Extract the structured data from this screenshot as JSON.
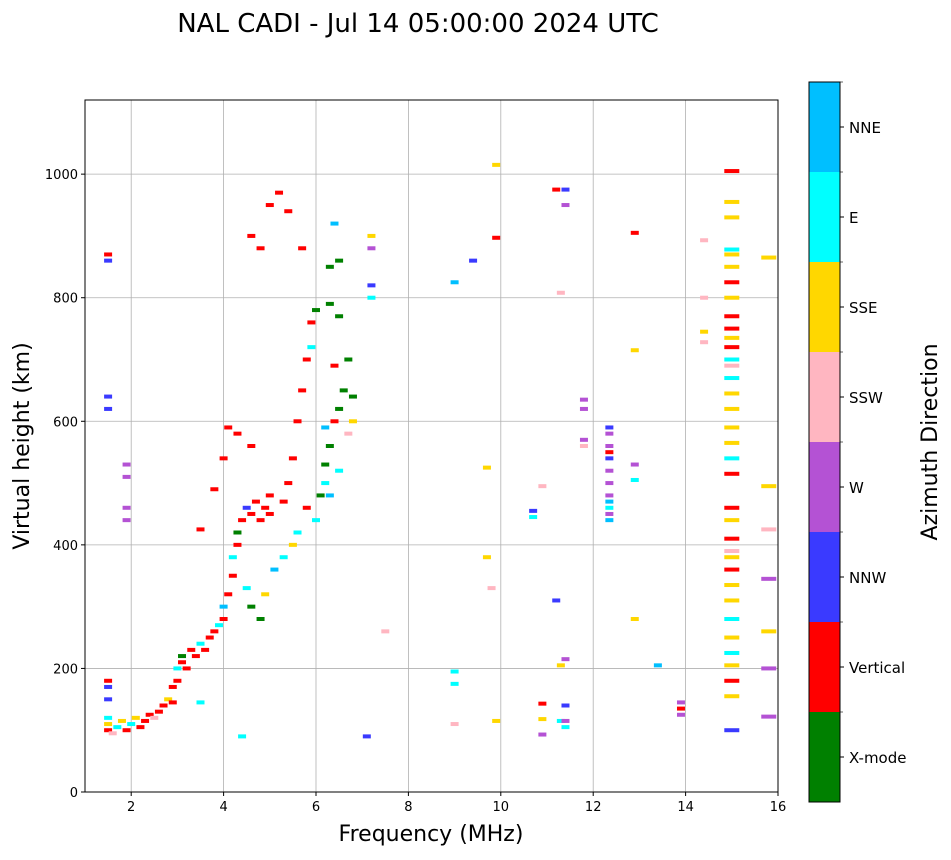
{
  "chart_data": {
    "type": "scatter",
    "title": "NAL CADI - Jul 14 05:00:00 2024 UTC",
    "xlabel": "Frequency (MHz)",
    "ylabel": "Virtual height (km)",
    "xlim": [
      1,
      16
    ],
    "ylim": [
      0,
      1120
    ],
    "xticks": [
      2,
      4,
      6,
      8,
      10,
      12,
      14,
      16
    ],
    "yticks": [
      0,
      200,
      400,
      600,
      800,
      1000
    ],
    "grid": true,
    "colorbar": {
      "label": "Azimuth Direction",
      "categories": [
        "X-mode",
        "Vertical",
        "NNW",
        "W",
        "SSW",
        "SSE",
        "E",
        "NNE"
      ],
      "colors": [
        "#008000",
        "#ff0000",
        "#3a3aff",
        "#b452d4",
        "#ffb6c1",
        "#ffd700",
        "#00ffff",
        "#00bfff"
      ]
    },
    "points_format": [
      "frequency_MHz",
      "virtual_height_km",
      "direction_index"
    ],
    "points": [
      [
        1.5,
        100,
        1
      ],
      [
        1.5,
        110,
        5
      ],
      [
        1.5,
        120,
        6
      ],
      [
        1.5,
        150,
        2
      ],
      [
        1.5,
        170,
        2
      ],
      [
        1.5,
        180,
        1
      ],
      [
        1.6,
        95,
        4
      ],
      [
        1.7,
        105,
        6
      ],
      [
        1.8,
        115,
        5
      ],
      [
        1.9,
        100,
        1
      ],
      [
        2.0,
        110,
        6
      ],
      [
        2.1,
        120,
        5
      ],
      [
        2.2,
        105,
        1
      ],
      [
        2.3,
        115,
        1
      ],
      [
        2.4,
        125,
        1
      ],
      [
        2.5,
        120,
        4
      ],
      [
        2.6,
        130,
        1
      ],
      [
        2.7,
        140,
        1
      ],
      [
        2.8,
        150,
        5
      ],
      [
        2.9,
        145,
        1
      ],
      [
        2.9,
        170,
        1
      ],
      [
        3.0,
        180,
        1
      ],
      [
        3.0,
        200,
        6
      ],
      [
        3.1,
        210,
        1
      ],
      [
        3.1,
        220,
        0
      ],
      [
        3.2,
        200,
        1
      ],
      [
        3.3,
        230,
        1
      ],
      [
        3.4,
        220,
        1
      ],
      [
        3.5,
        240,
        6
      ],
      [
        3.6,
        230,
        1
      ],
      [
        3.7,
        250,
        1
      ],
      [
        3.8,
        260,
        1
      ],
      [
        3.9,
        270,
        6
      ],
      [
        4.0,
        280,
        1
      ],
      [
        4.0,
        300,
        7
      ],
      [
        4.1,
        320,
        1
      ],
      [
        4.2,
        350,
        1
      ],
      [
        4.2,
        380,
        6
      ],
      [
        4.3,
        400,
        1
      ],
      [
        4.3,
        420,
        0
      ],
      [
        4.4,
        440,
        1
      ],
      [
        4.5,
        460,
        2
      ],
      [
        4.6,
        450,
        1
      ],
      [
        4.7,
        470,
        1
      ],
      [
        4.8,
        440,
        1
      ],
      [
        4.9,
        460,
        1
      ],
      [
        5.0,
        450,
        1
      ],
      [
        5.0,
        480,
        1
      ],
      [
        4.5,
        330,
        6
      ],
      [
        4.6,
        300,
        0
      ],
      [
        4.8,
        280,
        0
      ],
      [
        4.9,
        320,
        5
      ],
      [
        5.1,
        360,
        7
      ],
      [
        5.3,
        380,
        6
      ],
      [
        5.5,
        400,
        5
      ],
      [
        5.6,
        420,
        6
      ],
      [
        5.3,
        470,
        1
      ],
      [
        5.4,
        500,
        1
      ],
      [
        5.5,
        540,
        1
      ],
      [
        5.6,
        600,
        1
      ],
      [
        5.7,
        650,
        1
      ],
      [
        5.8,
        700,
        1
      ],
      [
        5.9,
        760,
        1
      ],
      [
        5.9,
        720,
        6
      ],
      [
        6.0,
        780,
        0
      ],
      [
        6.1,
        480,
        0
      ],
      [
        6.2,
        500,
        6
      ],
      [
        6.2,
        530,
        0
      ],
      [
        6.3,
        560,
        0
      ],
      [
        6.4,
        600,
        1
      ],
      [
        6.5,
        620,
        0
      ],
      [
        6.6,
        650,
        0
      ],
      [
        6.7,
        700,
        0
      ],
      [
        6.8,
        600,
        5
      ],
      [
        6.8,
        640,
        0
      ],
      [
        6.7,
        580,
        4
      ],
      [
        6.5,
        520,
        6
      ],
      [
        6.3,
        480,
        7
      ],
      [
        6.2,
        590,
        7
      ],
      [
        6.0,
        440,
        6
      ],
      [
        5.8,
        460,
        1
      ],
      [
        6.4,
        690,
        1
      ],
      [
        6.5,
        770,
        0
      ],
      [
        6.3,
        850,
        0
      ],
      [
        6.3,
        790,
        0
      ],
      [
        6.5,
        860,
        0
      ],
      [
        5.0,
        950,
        1
      ],
      [
        5.2,
        970,
        1
      ],
      [
        4.6,
        900,
        1
      ],
      [
        4.8,
        880,
        1
      ],
      [
        5.4,
        940,
        1
      ],
      [
        5.7,
        880,
        1
      ],
      [
        6.4,
        920,
        7
      ],
      [
        7.2,
        900,
        5
      ],
      [
        7.2,
        880,
        3
      ],
      [
        7.2,
        820,
        2
      ],
      [
        7.2,
        800,
        6
      ],
      [
        4.1,
        590,
        1
      ],
      [
        4.3,
        580,
        1
      ],
      [
        4.0,
        540,
        1
      ],
      [
        3.8,
        490,
        1
      ],
      [
        4.6,
        560,
        1
      ],
      [
        3.5,
        425,
        1
      ],
      [
        3.5,
        145,
        6
      ],
      [
        4.4,
        90,
        6
      ],
      [
        1.5,
        870,
        1
      ],
      [
        1.5,
        860,
        2
      ],
      [
        1.5,
        640,
        2
      ],
      [
        1.5,
        620,
        2
      ],
      [
        1.9,
        530,
        3
      ],
      [
        1.9,
        510,
        3
      ],
      [
        1.9,
        460,
        3
      ],
      [
        1.9,
        440,
        3
      ],
      [
        7.5,
        260,
        4
      ],
      [
        7.1,
        90,
        2
      ],
      [
        9.0,
        825,
        7
      ],
      [
        9.4,
        860,
        2
      ],
      [
        9.9,
        1015,
        5
      ],
      [
        9.9,
        897,
        1
      ],
      [
        9.7,
        525,
        5
      ],
      [
        9.7,
        380,
        5
      ],
      [
        9.8,
        330,
        4
      ],
      [
        9.9,
        115,
        5
      ],
      [
        9.0,
        110,
        4
      ],
      [
        9.0,
        195,
        6
      ],
      [
        9.0,
        175,
        6
      ],
      [
        10.7,
        455,
        2
      ],
      [
        10.7,
        445,
        6
      ],
      [
        10.9,
        495,
        4
      ],
      [
        10.9,
        143,
        1
      ],
      [
        10.9,
        118,
        5
      ],
      [
        10.9,
        93,
        3
      ],
      [
        11.2,
        310,
        2
      ],
      [
        11.3,
        205,
        5
      ],
      [
        11.3,
        115,
        6
      ],
      [
        11.4,
        975,
        2
      ],
      [
        11.4,
        950,
        3
      ],
      [
        11.2,
        975,
        1
      ],
      [
        11.3,
        808,
        4
      ],
      [
        11.4,
        215,
        3
      ],
      [
        11.4,
        140,
        2
      ],
      [
        11.4,
        115,
        3
      ],
      [
        11.4,
        105,
        6
      ],
      [
        11.8,
        635,
        3
      ],
      [
        11.8,
        620,
        3
      ],
      [
        11.8,
        570,
        3
      ],
      [
        11.8,
        560,
        4
      ],
      [
        12.35,
        590,
        2
      ],
      [
        12.35,
        580,
        3
      ],
      [
        12.35,
        560,
        3
      ],
      [
        12.35,
        550,
        1
      ],
      [
        12.35,
        540,
        2
      ],
      [
        12.35,
        520,
        3
      ],
      [
        12.35,
        500,
        3
      ],
      [
        12.35,
        480,
        3
      ],
      [
        12.35,
        470,
        7
      ],
      [
        12.35,
        460,
        6
      ],
      [
        12.35,
        450,
        3
      ],
      [
        12.35,
        440,
        7
      ],
      [
        12.9,
        905,
        1
      ],
      [
        12.9,
        715,
        5
      ],
      [
        12.9,
        530,
        3
      ],
      [
        12.9,
        505,
        6
      ],
      [
        12.9,
        280,
        5
      ],
      [
        13.4,
        205,
        7
      ],
      [
        13.9,
        145,
        3
      ],
      [
        13.9,
        135,
        1
      ],
      [
        13.9,
        125,
        3
      ],
      [
        14.4,
        893,
        4
      ],
      [
        14.4,
        800,
        4
      ],
      [
        14.4,
        745,
        5
      ],
      [
        14.4,
        728,
        4
      ],
      [
        15,
        1005,
        1
      ],
      [
        15,
        955,
        5
      ],
      [
        15,
        930,
        5
      ],
      [
        15,
        878,
        6
      ],
      [
        15,
        870,
        5
      ],
      [
        15,
        850,
        5
      ],
      [
        15,
        825,
        1
      ],
      [
        15,
        800,
        5
      ],
      [
        15,
        770,
        1
      ],
      [
        15,
        750,
        1
      ],
      [
        15,
        735,
        5
      ],
      [
        15,
        720,
        1
      ],
      [
        15,
        700,
        6
      ],
      [
        15,
        690,
        4
      ],
      [
        15,
        670,
        6
      ],
      [
        15,
        645,
        5
      ],
      [
        15,
        620,
        5
      ],
      [
        15,
        590,
        5
      ],
      [
        15,
        565,
        5
      ],
      [
        15,
        540,
        6
      ],
      [
        15,
        515,
        1
      ],
      [
        15,
        460,
        1
      ],
      [
        15,
        440,
        5
      ],
      [
        15,
        410,
        1
      ],
      [
        15,
        390,
        4
      ],
      [
        15,
        380,
        5
      ],
      [
        15,
        360,
        1
      ],
      [
        15,
        335,
        5
      ],
      [
        15,
        310,
        5
      ],
      [
        15,
        280,
        6
      ],
      [
        15,
        250,
        5
      ],
      [
        15,
        225,
        6
      ],
      [
        15,
        205,
        5
      ],
      [
        15,
        180,
        1
      ],
      [
        15,
        155,
        5
      ],
      [
        15,
        100,
        2
      ],
      [
        15.8,
        865,
        5
      ],
      [
        15.8,
        495,
        5
      ],
      [
        15.8,
        425,
        4
      ],
      [
        15.8,
        345,
        3
      ],
      [
        15.8,
        260,
        5
      ],
      [
        15.8,
        200,
        3
      ],
      [
        15.8,
        122,
        3
      ]
    ]
  }
}
